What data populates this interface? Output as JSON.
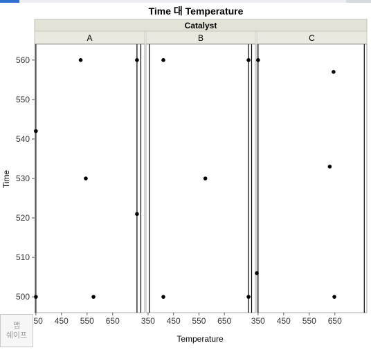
{
  "chart_data": {
    "type": "scatter",
    "title": "Time 대 Temperature",
    "group_label": "Catalyst",
    "xlabel": "Temperature",
    "ylabel": "Time",
    "ylim": [
      496,
      564
    ],
    "yticks": [
      500,
      510,
      520,
      530,
      540,
      550,
      560
    ],
    "xticks": [
      350,
      450,
      550,
      650
    ],
    "panels": [
      {
        "name": "A",
        "xlim": [
          345,
          775
        ],
        "vlines": [
          350,
          745,
          760
        ],
        "points": [
          {
            "x": 350,
            "y": 542
          },
          {
            "x": 350,
            "y": 500
          },
          {
            "x": 525,
            "y": 560
          },
          {
            "x": 545,
            "y": 530
          },
          {
            "x": 575,
            "y": 500
          },
          {
            "x": 745,
            "y": 560
          },
          {
            "x": 745,
            "y": 521
          }
        ]
      },
      {
        "name": "B",
        "xlim": [
          342,
          772
        ],
        "vlines": [
          355,
          745,
          757
        ],
        "points": [
          {
            "x": 410,
            "y": 560
          },
          {
            "x": 410,
            "y": 500
          },
          {
            "x": 575,
            "y": 530
          },
          {
            "x": 745,
            "y": 560
          },
          {
            "x": 745,
            "y": 500
          }
        ]
      },
      {
        "name": "C",
        "xlim": [
          345,
          775
        ],
        "vlines": [
          350,
          765
        ],
        "points": [
          {
            "x": 350,
            "y": 560
          },
          {
            "x": 345,
            "y": 506
          },
          {
            "x": 630,
            "y": 533
          },
          {
            "x": 645,
            "y": 557
          },
          {
            "x": 648,
            "y": 500
          }
        ]
      }
    ]
  },
  "map_shape_button": {
    "line1": "맵",
    "line2": "쉐이프"
  },
  "colors": {
    "header_bg": "#e2e2d6",
    "frame": "#a8a8a8",
    "point": "#000000",
    "line": "#000000"
  }
}
